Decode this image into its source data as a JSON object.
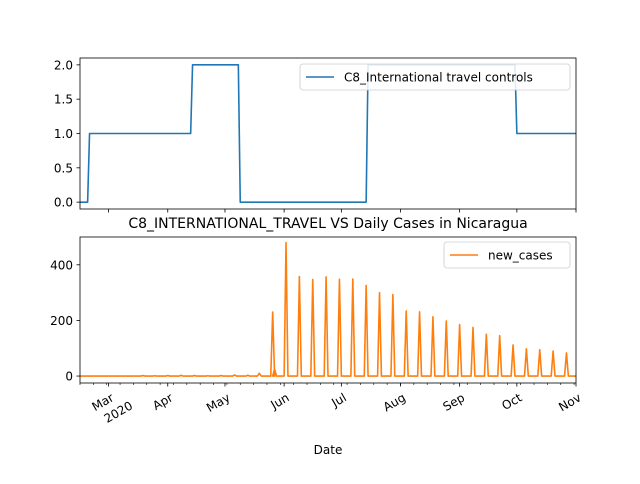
{
  "chart_data": [
    {
      "type": "line",
      "title": "",
      "xlabel": "",
      "ylabel": "",
      "ylim": [
        -0.1,
        2.1
      ],
      "yticks": [
        0.0,
        0.5,
        1.0,
        1.5,
        2.0
      ],
      "ytick_labels": [
        "0.0",
        "0.5",
        "1.0",
        "1.5",
        "2.0"
      ],
      "legend_position": "upper-right",
      "x_range": [
        "2020-02-15",
        "2020-11-01"
      ],
      "series": [
        {
          "name": "C8_International travel controls",
          "color": "#1f77b4",
          "x": [
            "2020-02-15",
            "2020-02-19",
            "2020-02-20",
            "2020-04-13",
            "2020-04-14",
            "2020-05-08",
            "2020-05-09",
            "2020-07-14",
            "2020-07-15",
            "2020-09-30",
            "2020-10-01",
            "2020-11-01"
          ],
          "y": [
            0,
            0,
            1,
            1,
            2,
            2,
            0,
            0,
            2,
            2,
            1,
            1
          ]
        }
      ]
    },
    {
      "type": "line",
      "title": "C8_INTERNATIONAL_TRAVEL VS Daily Cases in Nicaragua",
      "xlabel": "Date",
      "ylabel": "",
      "ylim": [
        -25,
        500
      ],
      "yticks": [
        0,
        200,
        400
      ],
      "ytick_labels": [
        "0",
        "200",
        "400"
      ],
      "legend_position": "upper-right",
      "x_range": [
        "2020-02-15",
        "2020-11-01"
      ],
      "xtick_labels": [
        {
          "date": "2020-03-01",
          "label": "Mar",
          "sublabel": "2020"
        },
        {
          "date": "2020-04-01",
          "label": "Apr"
        },
        {
          "date": "2020-05-01",
          "label": "May"
        },
        {
          "date": "2020-06-01",
          "label": "Jun"
        },
        {
          "date": "2020-07-01",
          "label": "Jul"
        },
        {
          "date": "2020-08-01",
          "label": "Aug"
        },
        {
          "date": "2020-09-01",
          "label": "Sep"
        },
        {
          "date": "2020-10-01",
          "label": "Oct"
        },
        {
          "date": "2020-11-01",
          "label": "Nov"
        }
      ],
      "series": [
        {
          "name": "new_cases",
          "color": "#ff7f0e",
          "baseline": 0,
          "spikes": [
            {
              "date": "2020-03-19",
              "value": 2
            },
            {
              "date": "2020-03-25",
              "value": 1
            },
            {
              "date": "2020-04-01",
              "value": 2
            },
            {
              "date": "2020-04-08",
              "value": 3
            },
            {
              "date": "2020-04-15",
              "value": 2
            },
            {
              "date": "2020-04-22",
              "value": 1
            },
            {
              "date": "2020-04-29",
              "value": 2
            },
            {
              "date": "2020-05-06",
              "value": 4
            },
            {
              "date": "2020-05-13",
              "value": 3
            },
            {
              "date": "2020-05-19",
              "value": 10
            },
            {
              "date": "2020-05-26",
              "value": 230
            },
            {
              "date": "2020-05-27",
              "value": 25
            },
            {
              "date": "2020-06-02",
              "value": 480
            },
            {
              "date": "2020-06-09",
              "value": 358
            },
            {
              "date": "2020-06-16",
              "value": 347
            },
            {
              "date": "2020-06-23",
              "value": 357
            },
            {
              "date": "2020-06-30",
              "value": 348
            },
            {
              "date": "2020-07-07",
              "value": 349
            },
            {
              "date": "2020-07-14",
              "value": 326
            },
            {
              "date": "2020-07-21",
              "value": 300
            },
            {
              "date": "2020-07-28",
              "value": 293
            },
            {
              "date": "2020-08-04",
              "value": 234
            },
            {
              "date": "2020-08-11",
              "value": 231
            },
            {
              "date": "2020-08-18",
              "value": 213
            },
            {
              "date": "2020-08-25",
              "value": 198
            },
            {
              "date": "2020-09-01",
              "value": 185
            },
            {
              "date": "2020-09-08",
              "value": 175
            },
            {
              "date": "2020-09-15",
              "value": 150
            },
            {
              "date": "2020-09-22",
              "value": 145
            },
            {
              "date": "2020-09-29",
              "value": 112
            },
            {
              "date": "2020-10-06",
              "value": 98
            },
            {
              "date": "2020-10-13",
              "value": 95
            },
            {
              "date": "2020-10-20",
              "value": 90
            },
            {
              "date": "2020-10-27",
              "value": 83
            },
            {
              "date": "2020-11-03",
              "value": 82
            }
          ]
        }
      ]
    }
  ]
}
